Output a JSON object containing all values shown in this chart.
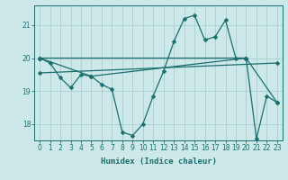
{
  "xlabel": "Humidex (Indice chaleur)",
  "background_color": "#cce8e8",
  "grid_color": "#aacfcf",
  "line_color": "#1a6e6e",
  "xlim": [
    -0.5,
    23.5
  ],
  "ylim": [
    17.5,
    21.6
  ],
  "yticks": [
    18,
    19,
    20,
    21
  ],
  "xticks": [
    0,
    1,
    2,
    3,
    4,
    5,
    6,
    7,
    8,
    9,
    10,
    11,
    12,
    13,
    14,
    15,
    16,
    17,
    18,
    19,
    20,
    21,
    22,
    23
  ],
  "series1_x": [
    0,
    1,
    2,
    3,
    4,
    5,
    6,
    7,
    8,
    9,
    10,
    11,
    12,
    13,
    14,
    15,
    16,
    17,
    18,
    19,
    20,
    21,
    22,
    23
  ],
  "series1_y": [
    20.0,
    19.85,
    19.4,
    19.1,
    19.5,
    19.45,
    19.2,
    19.05,
    17.75,
    17.65,
    18.0,
    18.85,
    19.6,
    20.5,
    21.2,
    21.3,
    20.55,
    20.65,
    21.15,
    20.0,
    20.0,
    17.55,
    18.85,
    18.65
  ],
  "series2_x": [
    0,
    5,
    20
  ],
  "series2_y": [
    20.0,
    19.45,
    20.0
  ],
  "series3_x": [
    0,
    20,
    23
  ],
  "series3_y": [
    20.0,
    20.0,
    18.65
  ],
  "series4_x": [
    0,
    23
  ],
  "series4_y": [
    19.55,
    19.85
  ],
  "marker_size": 2.5
}
